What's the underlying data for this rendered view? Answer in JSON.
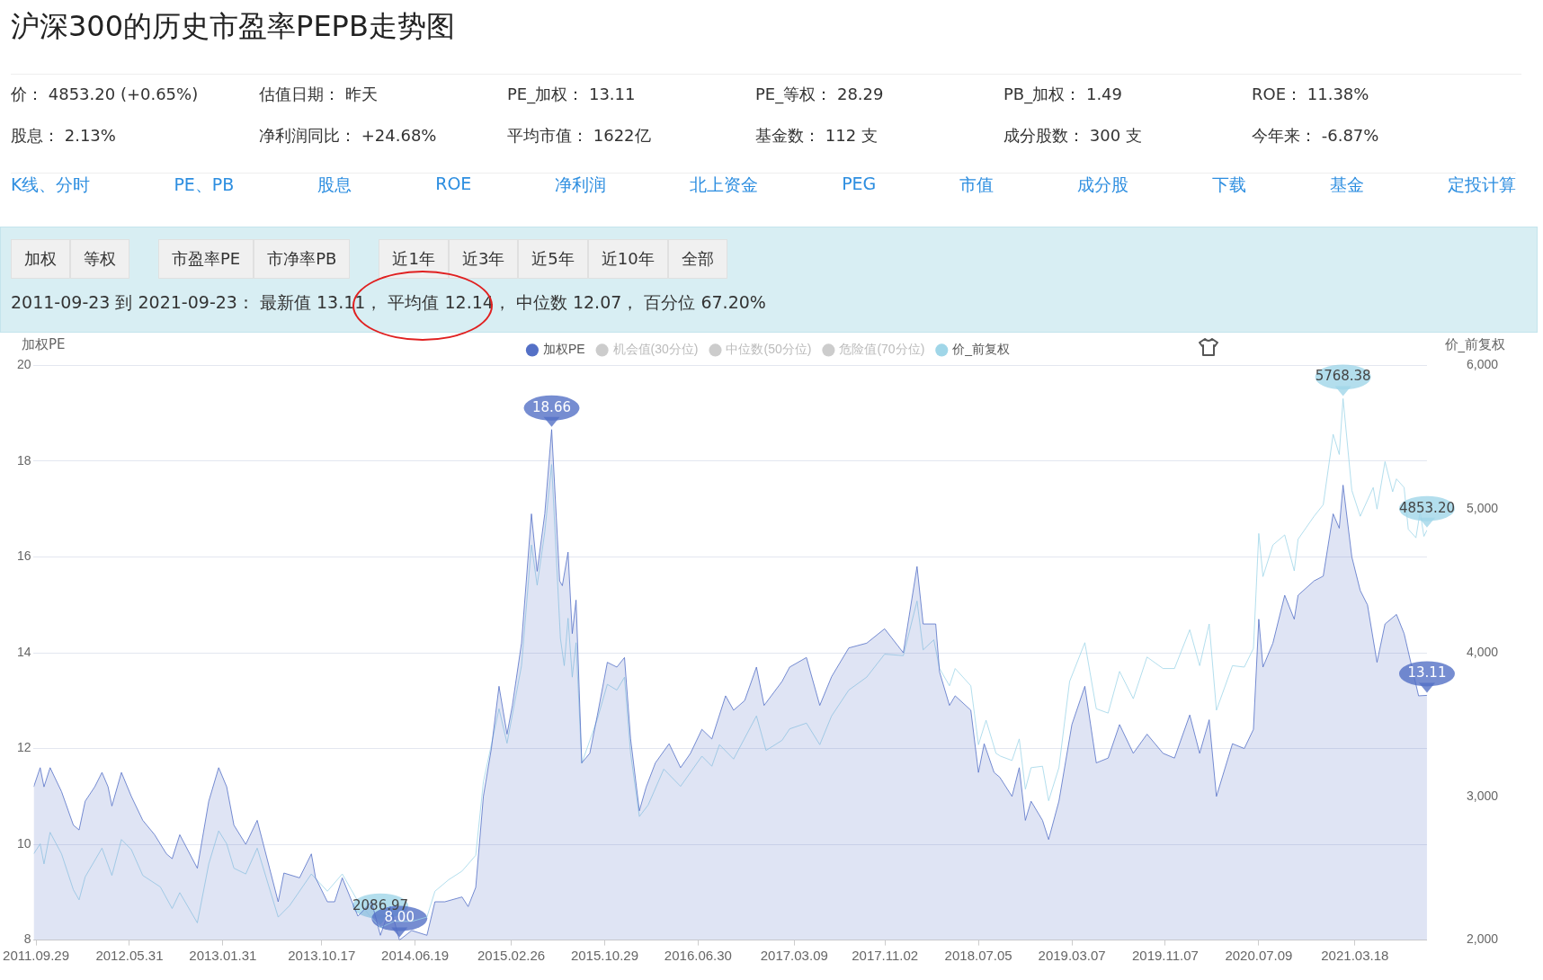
{
  "chart_data": {
    "type": "line",
    "title": "沪深300的历史市盈率PEPB走势图",
    "ylabel": "加权PE",
    "y2label": "价_前复权",
    "xlim": [
      "2011-09-23",
      "2021-09-23"
    ],
    "xticks": [
      {
        "value": "2011-09-29",
        "label": "2011.09.29"
      },
      {
        "value": "2012-05-31",
        "label": "2012.05.31"
      },
      {
        "value": "2013-01-31",
        "label": "2013.01.31"
      },
      {
        "value": "2013-10-17",
        "label": "2013.10.17"
      },
      {
        "value": "2014-06-19",
        "label": "2014.06.19"
      },
      {
        "value": "2015-02-26",
        "label": "2015.02.26"
      },
      {
        "value": "2015-10-29",
        "label": "2015.10.29"
      },
      {
        "value": "2016-06-30",
        "label": "2016.06.30"
      },
      {
        "value": "2017-03-09",
        "label": "2017.03.09"
      },
      {
        "value": "2017-11-02",
        "label": "2017.11.02"
      },
      {
        "value": "2018-07-05",
        "label": "2018.07.05"
      },
      {
        "value": "2019-03-07",
        "label": "2019.03.07"
      },
      {
        "value": "2019-11-07",
        "label": "2019.11.07"
      },
      {
        "value": "2020-07-09",
        "label": "2020.07.09"
      },
      {
        "value": "2021-03-18",
        "label": "2021.03.18"
      }
    ],
    "ylim": [
      8,
      20
    ],
    "yticks": [
      8,
      10,
      12,
      14,
      16,
      18,
      20
    ],
    "y2lim": [
      2000,
      6000
    ],
    "y2ticks": [
      {
        "value": 2000,
        "label": "2,000"
      },
      {
        "value": 3000,
        "label": "3,000"
      },
      {
        "value": 4000,
        "label": "4,000"
      },
      {
        "value": 5000,
        "label": "5,000"
      },
      {
        "value": 6000,
        "label": "6,000"
      }
    ],
    "grid": "y",
    "legend": "top",
    "marker": "none",
    "line_style": "solid",
    "series": [
      {
        "name": "加权PE",
        "type": "area",
        "color": "#5470c6",
        "x": [
          "2011-09-23",
          "2011-10-10",
          "2011-10-20",
          "2011-11-05",
          "2011-12-05",
          "2012-01-05",
          "2012-01-20",
          "2012-02-05",
          "2012-03-01",
          "2012-03-20",
          "2012-04-05",
          "2012-04-15",
          "2012-05-10",
          "2012-06-05",
          "2012-07-05",
          "2012-08-05",
          "2012-09-05",
          "2012-09-20",
          "2012-10-10",
          "2012-11-25",
          "2012-12-25",
          "2013-01-20",
          "2013-02-10",
          "2013-03-01",
          "2013-04-01",
          "2013-05-01",
          "2013-06-25",
          "2013-07-10",
          "2013-08-20",
          "2013-09-20",
          "2013-10-01",
          "2013-11-01",
          "2013-11-20",
          "2013-12-10",
          "2014-01-20",
          "2014-02-25",
          "2014-03-20",
          "2014-04-15",
          "2014-05-09",
          "2014-06-10",
          "2014-07-20",
          "2014-08-10",
          "2014-09-05",
          "2014-10-20",
          "2014-11-05",
          "2014-11-25",
          "2014-12-15",
          "2015-01-05",
          "2015-01-25",
          "2015-02-15",
          "2015-03-01",
          "2015-03-25",
          "2015-04-20",
          "2015-05-05",
          "2015-05-25",
          "2015-06-12",
          "2015-07-03",
          "2015-07-10",
          "2015-07-25",
          "2015-08-05",
          "2015-08-15",
          "2015-08-30",
          "2015-09-20",
          "2015-10-10",
          "2015-11-05",
          "2015-11-30",
          "2015-12-20",
          "2016-01-05",
          "2016-01-28",
          "2016-02-15",
          "2016-03-10",
          "2016-04-15",
          "2016-05-15",
          "2016-06-10",
          "2016-07-10",
          "2016-08-05",
          "2016-09-10",
          "2016-10-01",
          "2016-10-30",
          "2016-11-30",
          "2016-12-20",
          "2017-02-05",
          "2017-02-25",
          "2017-04-10",
          "2017-05-15",
          "2017-06-15",
          "2017-07-30",
          "2017-09-15",
          "2017-11-01",
          "2017-12-20",
          "2018-01-25",
          "2018-02-10",
          "2018-03-15",
          "2018-03-25",
          "2018-04-20",
          "2018-05-05",
          "2018-06-15",
          "2018-07-05",
          "2018-07-20",
          "2018-08-15",
          "2018-08-30",
          "2018-10-01",
          "2018-10-20",
          "2018-11-05",
          "2018-11-20",
          "2018-12-20",
          "2019-01-05",
          "2019-02-01",
          "2019-03-07",
          "2019-04-10",
          "2019-05-10",
          "2019-06-10",
          "2019-07-10",
          "2019-08-15",
          "2019-09-20",
          "2019-11-01",
          "2019-12-01",
          "2020-01-10",
          "2020-02-05",
          "2020-03-01",
          "2020-03-20",
          "2020-05-01",
          "2020-06-01",
          "2020-06-25",
          "2020-07-09",
          "2020-07-20",
          "2020-08-15",
          "2020-09-15",
          "2020-10-10",
          "2020-10-20",
          "2020-12-01",
          "2020-12-25",
          "2021-01-20",
          "2021-02-05",
          "2021-02-15",
          "2021-03-10",
          "2021-04-01",
          "2021-04-20",
          "2021-05-15",
          "2021-06-05",
          "2021-07-05",
          "2021-07-25",
          "2021-08-05",
          "2021-09-01",
          "2021-09-23"
        ],
        "values": [
          11.2,
          11.6,
          11.2,
          11.6,
          11.1,
          10.4,
          10.3,
          10.9,
          11.2,
          11.5,
          11.2,
          10.8,
          11.5,
          11.0,
          10.5,
          10.2,
          9.8,
          9.7,
          10.2,
          9.5,
          10.9,
          11.6,
          11.2,
          10.4,
          10.0,
          10.5,
          8.8,
          9.4,
          9.3,
          9.8,
          9.3,
          8.8,
          8.8,
          9.3,
          8.5,
          8.8,
          8.1,
          8.7,
          8.0,
          8.2,
          8.1,
          8.8,
          8.8,
          8.9,
          8.7,
          9.1,
          11.0,
          12.0,
          13.3,
          12.3,
          12.9,
          14.2,
          16.9,
          15.7,
          16.9,
          18.66,
          15.5,
          15.4,
          16.1,
          14.4,
          15.1,
          11.7,
          11.9,
          12.7,
          13.8,
          13.7,
          13.9,
          12.2,
          10.7,
          11.2,
          11.7,
          12.1,
          11.6,
          11.9,
          12.4,
          12.2,
          13.1,
          12.8,
          13.0,
          13.7,
          12.9,
          13.4,
          13.7,
          13.9,
          12.9,
          13.5,
          14.1,
          14.2,
          14.5,
          14.0,
          15.8,
          14.6,
          14.6,
          13.6,
          12.9,
          13.1,
          12.8,
          11.5,
          12.1,
          11.5,
          11.4,
          11.0,
          11.6,
          10.5,
          10.9,
          10.5,
          10.1,
          10.9,
          12.5,
          13.3,
          11.7,
          11.8,
          12.5,
          11.9,
          12.3,
          11.9,
          11.8,
          12.7,
          11.9,
          12.6,
          11.0,
          12.1,
          12.0,
          12.4,
          14.7,
          13.7,
          14.2,
          15.2,
          14.7,
          15.2,
          15.5,
          15.6,
          16.9,
          16.6,
          17.5,
          16.0,
          15.3,
          15.0,
          13.8,
          14.6,
          14.8,
          14.4,
          null,
          13.1,
          13.11
        ]
      },
      {
        "name": "机会值(30分位)",
        "type": "line",
        "color": "#cccccc"
      },
      {
        "name": "中位数(50分位)",
        "type": "line",
        "color": "#cccccc"
      },
      {
        "name": "危险值(70分位)",
        "type": "line",
        "color": "#cccccc"
      },
      {
        "name": "价_前复权",
        "type": "line",
        "axis": "y2",
        "color": "#a0d6e8",
        "x": [
          "2011-09-23",
          "2011-10-10",
          "2011-10-20",
          "2011-11-05",
          "2011-12-05",
          "2012-01-05",
          "2012-01-20",
          "2012-02-05",
          "2012-03-20",
          "2012-04-15",
          "2012-05-10",
          "2012-06-05",
          "2012-07-05",
          "2012-08-20",
          "2012-09-20",
          "2012-10-10",
          "2012-11-25",
          "2012-12-25",
          "2013-01-20",
          "2013-02-10",
          "2013-03-01",
          "2013-04-01",
          "2013-05-01",
          "2013-06-25",
          "2013-07-25",
          "2013-09-20",
          "2013-11-01",
          "2013-12-10",
          "2014-01-20",
          "2014-02-20",
          "2014-03-20",
          "2014-04-25",
          "2014-06-10",
          "2014-07-20",
          "2014-08-10",
          "2014-09-15",
          "2014-10-20",
          "2014-11-25",
          "2014-12-15",
          "2015-01-25",
          "2015-02-15",
          "2015-03-25",
          "2015-04-20",
          "2015-05-05",
          "2015-05-25",
          "2015-06-12",
          "2015-07-05",
          "2015-07-15",
          "2015-07-25",
          "2015-08-05",
          "2015-08-15",
          "2015-08-30",
          "2015-10-10",
          "2015-11-05",
          "2015-11-30",
          "2015-12-20",
          "2016-01-05",
          "2016-01-28",
          "2016-02-20",
          "2016-04-01",
          "2016-05-15",
          "2016-07-10",
          "2016-08-05",
          "2016-08-25",
          "2016-10-01",
          "2016-11-30",
          "2016-12-25",
          "2017-02-05",
          "2017-02-25",
          "2017-04-10",
          "2017-05-15",
          "2017-06-15",
          "2017-07-30",
          "2017-09-15",
          "2017-11-01",
          "2017-12-20",
          "2018-01-25",
          "2018-02-10",
          "2018-03-10",
          "2018-03-25",
          "2018-04-20",
          "2018-05-05",
          "2018-06-15",
          "2018-07-05",
          "2018-07-25",
          "2018-08-20",
          "2018-09-01",
          "2018-10-01",
          "2018-10-20",
          "2018-11-05",
          "2018-11-20",
          "2018-12-20",
          "2019-01-05",
          "2019-02-01",
          "2019-03-01",
          "2019-04-10",
          "2019-05-10",
          "2019-06-10",
          "2019-07-10",
          "2019-08-15",
          "2019-09-20",
          "2019-11-01",
          "2019-12-01",
          "2020-01-10",
          "2020-02-05",
          "2020-03-01",
          "2020-03-20",
          "2020-05-01",
          "2020-06-01",
          "2020-06-25",
          "2020-07-09",
          "2020-07-20",
          "2020-08-15",
          "2020-09-15",
          "2020-10-10",
          "2020-10-20",
          "2020-12-01",
          "2020-12-25",
          "2021-01-20",
          "2021-02-05",
          "2021-02-15",
          "2021-03-10",
          "2021-04-01",
          "2021-05-05",
          "2021-05-15",
          "2021-06-05",
          "2021-06-25",
          "2021-07-05",
          "2021-07-25",
          "2021-08-05",
          "2021-08-25",
          "2021-09-05",
          "2021-09-15",
          "2021-09-23"
        ],
        "values": [
          2600,
          2670,
          2530,
          2750,
          2600,
          2350,
          2280,
          2440,
          2640,
          2450,
          2700,
          2630,
          2450,
          2370,
          2220,
          2330,
          2120,
          2530,
          2760,
          2670,
          2500,
          2460,
          2640,
          2160,
          2240,
          2460,
          2340,
          2460,
          2270,
          2170,
          2086.97,
          2130,
          2130,
          2160,
          2340,
          2420,
          2480,
          2590,
          3100,
          3610,
          3370,
          3910,
          4750,
          4470,
          4840,
          5310,
          4100,
          3910,
          4240,
          3830,
          4070,
          3230,
          3540,
          3780,
          3740,
          3830,
          3300,
          2860,
          2940,
          3190,
          3070,
          3280,
          3210,
          3360,
          3260,
          3560,
          3320,
          3390,
          3470,
          3510,
          3360,
          3560,
          3740,
          3830,
          3990,
          3980,
          4360,
          4020,
          4090,
          3890,
          3770,
          3890,
          3770,
          3360,
          3530,
          3300,
          3280,
          3250,
          3400,
          3050,
          3200,
          3210,
          2970,
          3200,
          3800,
          4070,
          3610,
          3580,
          3870,
          3680,
          3970,
          3890,
          3890,
          4160,
          3910,
          4200,
          3600,
          3910,
          3900,
          4030,
          4830,
          4530,
          4750,
          4820,
          4570,
          4790,
          4950,
          5030,
          5520,
          5380,
          5768.38,
          5130,
          4950,
          5150,
          5000,
          5330,
          5120,
          5210,
          5150,
          4860,
          4800,
          4980,
          4810,
          4853.2
        ],
        "value_labels": [
          null,
          null,
          null,
          null,
          null,
          null,
          null,
          null,
          null,
          null,
          null,
          null,
          null,
          null,
          null,
          null,
          null,
          null,
          null,
          null,
          null,
          null,
          null,
          null,
          null,
          null,
          null,
          null,
          null,
          null,
          "2086.97",
          null,
          null,
          null,
          null,
          null,
          null,
          null,
          null,
          null,
          null,
          null,
          null,
          null,
          null,
          null,
          null,
          null,
          null,
          null,
          null,
          null,
          null,
          null,
          null,
          null,
          null,
          null,
          null,
          null,
          null,
          null,
          null,
          null,
          null,
          null,
          null,
          null,
          null,
          null,
          null,
          null,
          null,
          null,
          null,
          null,
          null,
          null,
          null,
          null,
          null,
          null,
          null,
          null,
          null,
          null,
          null,
          null,
          null,
          null,
          null,
          null,
          null,
          null,
          null,
          null,
          null,
          null,
          null,
          null,
          null,
          null,
          null,
          null,
          null,
          null,
          null,
          null,
          null,
          null,
          null,
          null,
          null,
          null,
          null,
          null,
          null,
          null,
          null,
          null,
          "5768.38",
          null,
          null,
          null,
          null,
          null,
          null,
          null,
          null,
          null,
          null,
          null,
          null,
          "4853.20"
        ]
      }
    ],
    "annotations": [
      "价： 4853.20 (+0.65%)",
      "估值日期： 昨天",
      "PE_加权： 13.11",
      "PE_等权： 28.29",
      "PB_加权： 1.49",
      "ROE： 11.38%",
      "股息： 2.13%",
      "净利润同比： +24.68%",
      "平均市值： 1622亿",
      "基金数： 112 支",
      "成分股数： 300 支",
      "今年来： -6.87%",
      "K线、分时",
      "PE、PB",
      "股息",
      "ROE",
      "净利润",
      "北上资金",
      "PEG",
      "市值",
      "成分股",
      "下载",
      "基金",
      "定投计算",
      "加权",
      "等权",
      "市盈率PE",
      "市净率PB",
      "近1年",
      "近3年",
      "近5年",
      "近10年",
      "全部",
      "2011-09-23 到 2021-09-23：  最新值 13.11，  平均值 12.14，  中位数 12.07，  百分位 67.20%",
      {
        "text": "18.66",
        "x": "2015-06-12",
        "y": 18.66
      },
      {
        "text": "8.00",
        "x": "2014-05-09",
        "y": 8.0
      },
      {
        "text": "13.11",
        "x": "2021-09-23",
        "y": 13.11
      }
    ]
  }
}
